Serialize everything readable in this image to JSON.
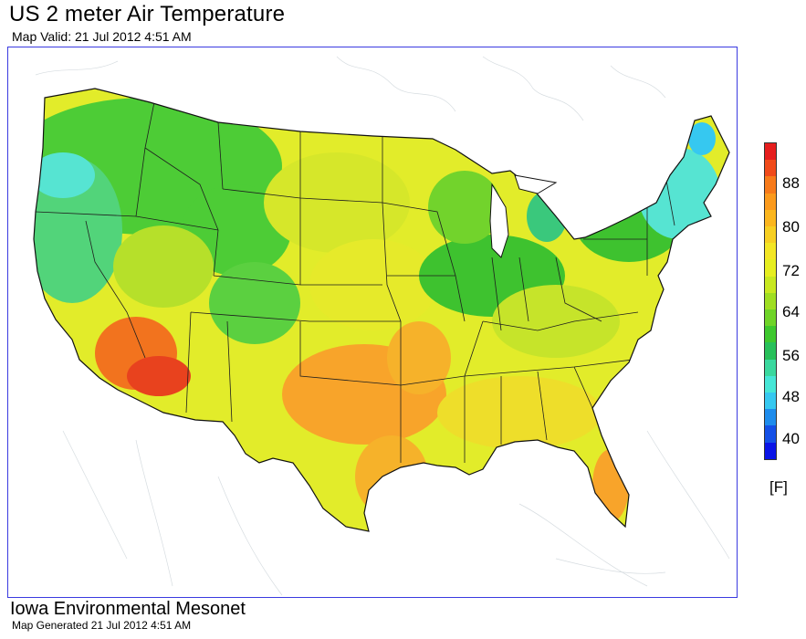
{
  "title": "US 2 meter Air Temperature",
  "subtitle": "Map Valid: 21 Jul 2012 4:51 AM",
  "footer": {
    "organization": "Iowa Environmental Mesonet",
    "generated": "Map Generated 21 Jul 2012 4:51 AM"
  },
  "legend": {
    "unit": "[F]",
    "tick_labels": [
      "88",
      "80",
      "72",
      "64",
      "56",
      "48",
      "40"
    ],
    "colors_top_to_bottom": [
      "#e61e1e",
      "#f04a1a",
      "#f77a1a",
      "#fb9a1c",
      "#fbb61e",
      "#f7cf22",
      "#f3e624",
      "#e6ee20",
      "#c8e820",
      "#9fde22",
      "#6fd428",
      "#3ec82e",
      "#28c05a",
      "#3ad89e",
      "#46e6d6",
      "#36c8f0",
      "#1e8cec",
      "#1450e6",
      "#0a14e6"
    ]
  },
  "map": {
    "region": "Contiguous United States",
    "variable": "2 meter air temperature",
    "temperature_pattern": [
      {
        "area": "Pacific Northwest / Northern Rockies",
        "color": "#4dcc36"
      },
      {
        "area": "Northern Plains",
        "color": "#d6e72a"
      },
      {
        "area": "Desert Southwest",
        "color": "#f2731e"
      },
      {
        "area": "Southern Plains",
        "color": "#f8a42a"
      },
      {
        "area": "Southeast",
        "color": "#eede2a"
      },
      {
        "area": "Great Lakes / Ohio Valley",
        "color": "#3ec22f"
      },
      {
        "area": "Northeast",
        "color": "#56e4d2"
      },
      {
        "area": "Florida",
        "color": "#f8a42a"
      }
    ]
  }
}
